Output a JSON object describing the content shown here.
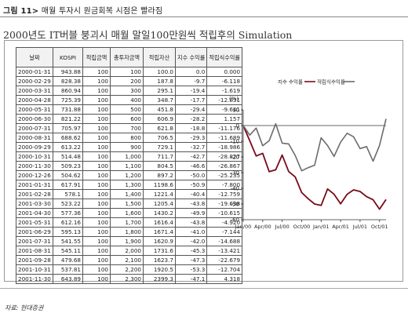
{
  "header": {
    "figure_label": "그림 11>",
    "title": "매월 투자시 원금회복 시점은 빨라짐",
    "subtitle": "2000년도 IT버블 붕괴시 매월 말일100만원씩 적립후의 Simulation"
  },
  "table": {
    "columns": [
      "날짜",
      "KOSPI",
      "적립금액",
      "총투자금액",
      "적립자산",
      "지수 수익률",
      "적립식수익률"
    ],
    "rows": [
      [
        "2000-01-31",
        "943.88",
        "100",
        "100",
        "100.0",
        "0.0",
        "0.000"
      ],
      [
        "2000-02-29",
        "828.38",
        "100",
        "200",
        "187.8",
        "-9.7",
        "-6.118"
      ],
      [
        "2000-03-31",
        "860.94",
        "100",
        "300",
        "295.1",
        "-19.4",
        "-1.619"
      ],
      [
        "2000-04-28",
        "725.39",
        "100",
        "400",
        "348.7",
        "-17.7",
        "-12.831"
      ],
      [
        "2000-05-31",
        "731.88",
        "100",
        "500",
        "451.8",
        "-29.4",
        "-9.641"
      ],
      [
        "2000-06-30",
        "821.22",
        "100",
        "600",
        "606.9",
        "-28.2",
        "1.157"
      ],
      [
        "2000-07-31",
        "705.97",
        "100",
        "700",
        "621.8",
        "-18.8",
        "-11.176"
      ],
      [
        "2000-08-31",
        "688.62",
        "100",
        "800",
        "706.5",
        "-29.3",
        "-11.689"
      ],
      [
        "2000-09-29",
        "613.22",
        "100",
        "900",
        "729.1",
        "-32.7",
        "-18.986"
      ],
      [
        "2000-10-31",
        "514.48",
        "100",
        "1,000",
        "711.7",
        "-42.7",
        "-28.827"
      ],
      [
        "2000-11-30",
        "509.23",
        "100",
        "1,100",
        "804.5",
        "-46.6",
        "-26.867"
      ],
      [
        "2000-12-26",
        "504.62",
        "100",
        "1,200",
        "897.2",
        "-50.0",
        "-25.235"
      ],
      [
        "2001-01-31",
        "617.91",
        "100",
        "1,300",
        "1198.6",
        "-50.9",
        "-7.800"
      ],
      [
        "2001-02-28",
        "578.1",
        "100",
        "1,400",
        "1221.4",
        "-40.4",
        "-12.759"
      ],
      [
        "2001-03-30",
        "523.22",
        "100",
        "1,500",
        "1205.4",
        "-43.8",
        "-19.638"
      ],
      [
        "2001-04-30",
        "577.36",
        "100",
        "1,600",
        "1430.2",
        "-49.9",
        "-10.615"
      ],
      [
        "2001-05-31",
        "612.16",
        "100",
        "1,700",
        "1616.4",
        "-43.8",
        "-4.920"
      ],
      [
        "2001-06-29",
        "595.13",
        "100",
        "1,800",
        "1671.4",
        "-41.0",
        "-7.144"
      ],
      [
        "2001-07-31",
        "541.55",
        "100",
        "1,900",
        "1620.9",
        "-42.0",
        "-14.688"
      ],
      [
        "2001-08-31",
        "545.11",
        "100",
        "2,000",
        "1731.6",
        "-45.3",
        "-13.421"
      ],
      [
        "2001-09-28",
        "479.68",
        "100",
        "2,100",
        "1623.7",
        "-47.3",
        "-22.679"
      ],
      [
        "2001-10-31",
        "537.81",
        "100",
        "2,200",
        "1920.5",
        "-53.3",
        "-12.704"
      ],
      [
        "2001-11-30",
        "643.89",
        "100",
        "2,300",
        "2399.3",
        "-47.1",
        "4.318"
      ]
    ]
  },
  "chart_data": {
    "type": "line",
    "ylabel": "(%)",
    "ylim": [
      -60,
      10
    ],
    "yticks": [
      10,
      0,
      -10,
      -20,
      -30,
      -40,
      -50,
      -60
    ],
    "x": [
      "2000-01-31",
      "2000-02-29",
      "2000-03-31",
      "2000-04-28",
      "2000-05-31",
      "2000-06-30",
      "2000-07-31",
      "2000-08-31",
      "2000-09-29",
      "2000-10-31",
      "2000-11-30",
      "2000-12-26",
      "2001-01-31",
      "2001-02-28",
      "2001-03-30",
      "2001-04-30",
      "2001-05-31",
      "2001-06-29",
      "2001-07-31",
      "2001-08-31",
      "2001-09-28",
      "2001-10-31",
      "2001-11-30"
    ],
    "xtick_labels": [
      "Jan/00",
      "Apr/00",
      "Jul/00",
      "Oct/00",
      "Jan/01",
      "Apr/01",
      "Jul/01",
      "Oct/01"
    ],
    "xtick_index": [
      0,
      3,
      6,
      9,
      12,
      15,
      18,
      21
    ],
    "legend_position": "top-center",
    "series": [
      {
        "name": "지수 수익률",
        "color": "#7a0a1a",
        "values": [
          0,
          -9.7,
          -19.4,
          -17.7,
          -29.4,
          -28.2,
          -18.8,
          -29.3,
          -32.7,
          -42.7,
          -46.6,
          -50.0,
          -50.9,
          -40.4,
          -43.8,
          -49.9,
          -43.8,
          -41.0,
          -42.0,
          -45.3,
          -47.3,
          -53.3,
          -47.1
        ]
      },
      {
        "name": "적립식수익률",
        "color": "#6b6b6b",
        "values": [
          0,
          -6.118,
          -1.619,
          -12.831,
          -9.641,
          1.157,
          -11.176,
          -11.689,
          -18.986,
          -28.827,
          -26.867,
          -25.235,
          -7.8,
          -12.759,
          -19.638,
          -10.615,
          -4.92,
          -7.144,
          -14.688,
          -13.421,
          -22.679,
          -12.704,
          4.318
        ]
      }
    ]
  },
  "footer": {
    "source": "자료: 현대증권"
  }
}
